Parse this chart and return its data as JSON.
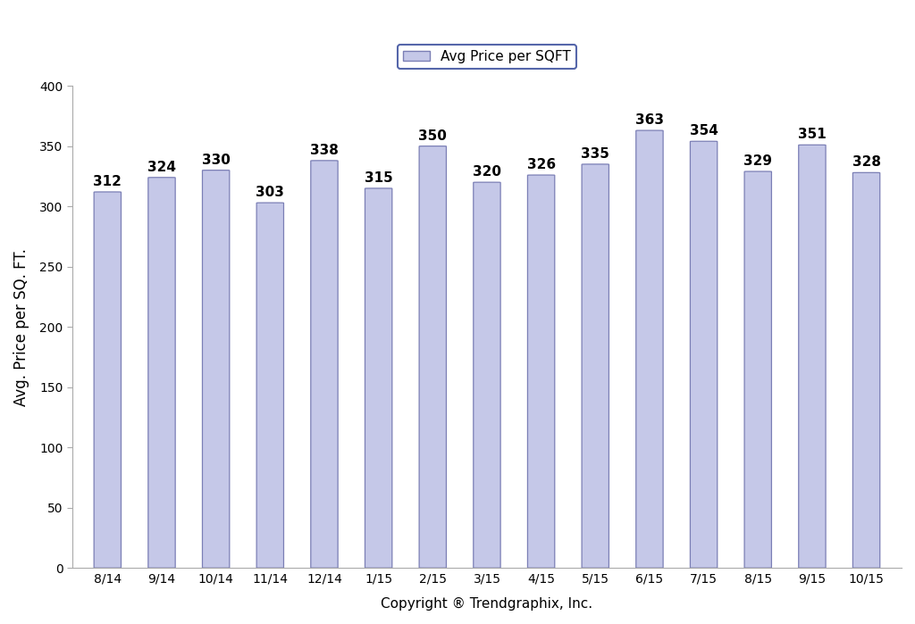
{
  "categories": [
    "8/14",
    "9/14",
    "10/14",
    "11/14",
    "12/14",
    "1/15",
    "2/15",
    "3/15",
    "4/15",
    "5/15",
    "6/15",
    "7/15",
    "8/15",
    "9/15",
    "10/15"
  ],
  "values": [
    312,
    324,
    330,
    303,
    338,
    315,
    350,
    320,
    326,
    335,
    363,
    354,
    329,
    351,
    328
  ],
  "bar_color": "#c5c8e8",
  "bar_edge_color": "#7b7fb5",
  "ylabel": "Avg. Price per SQ. FT.",
  "xlabel": "Copyright ® Trendgraphix, Inc.",
  "legend_label": "Avg Price per SQFT",
  "ylim": [
    0,
    400
  ],
  "yticks": [
    0,
    50,
    100,
    150,
    200,
    250,
    300,
    350,
    400
  ],
  "background_color": "#ffffff",
  "bar_width": 0.5,
  "label_fontsize": 11,
  "tick_fontsize": 10,
  "ylabel_fontsize": 12,
  "xlabel_fontsize": 11,
  "legend_fontsize": 11,
  "legend_edge_color": "#5566aa",
  "spine_color": "#aaaaaa"
}
